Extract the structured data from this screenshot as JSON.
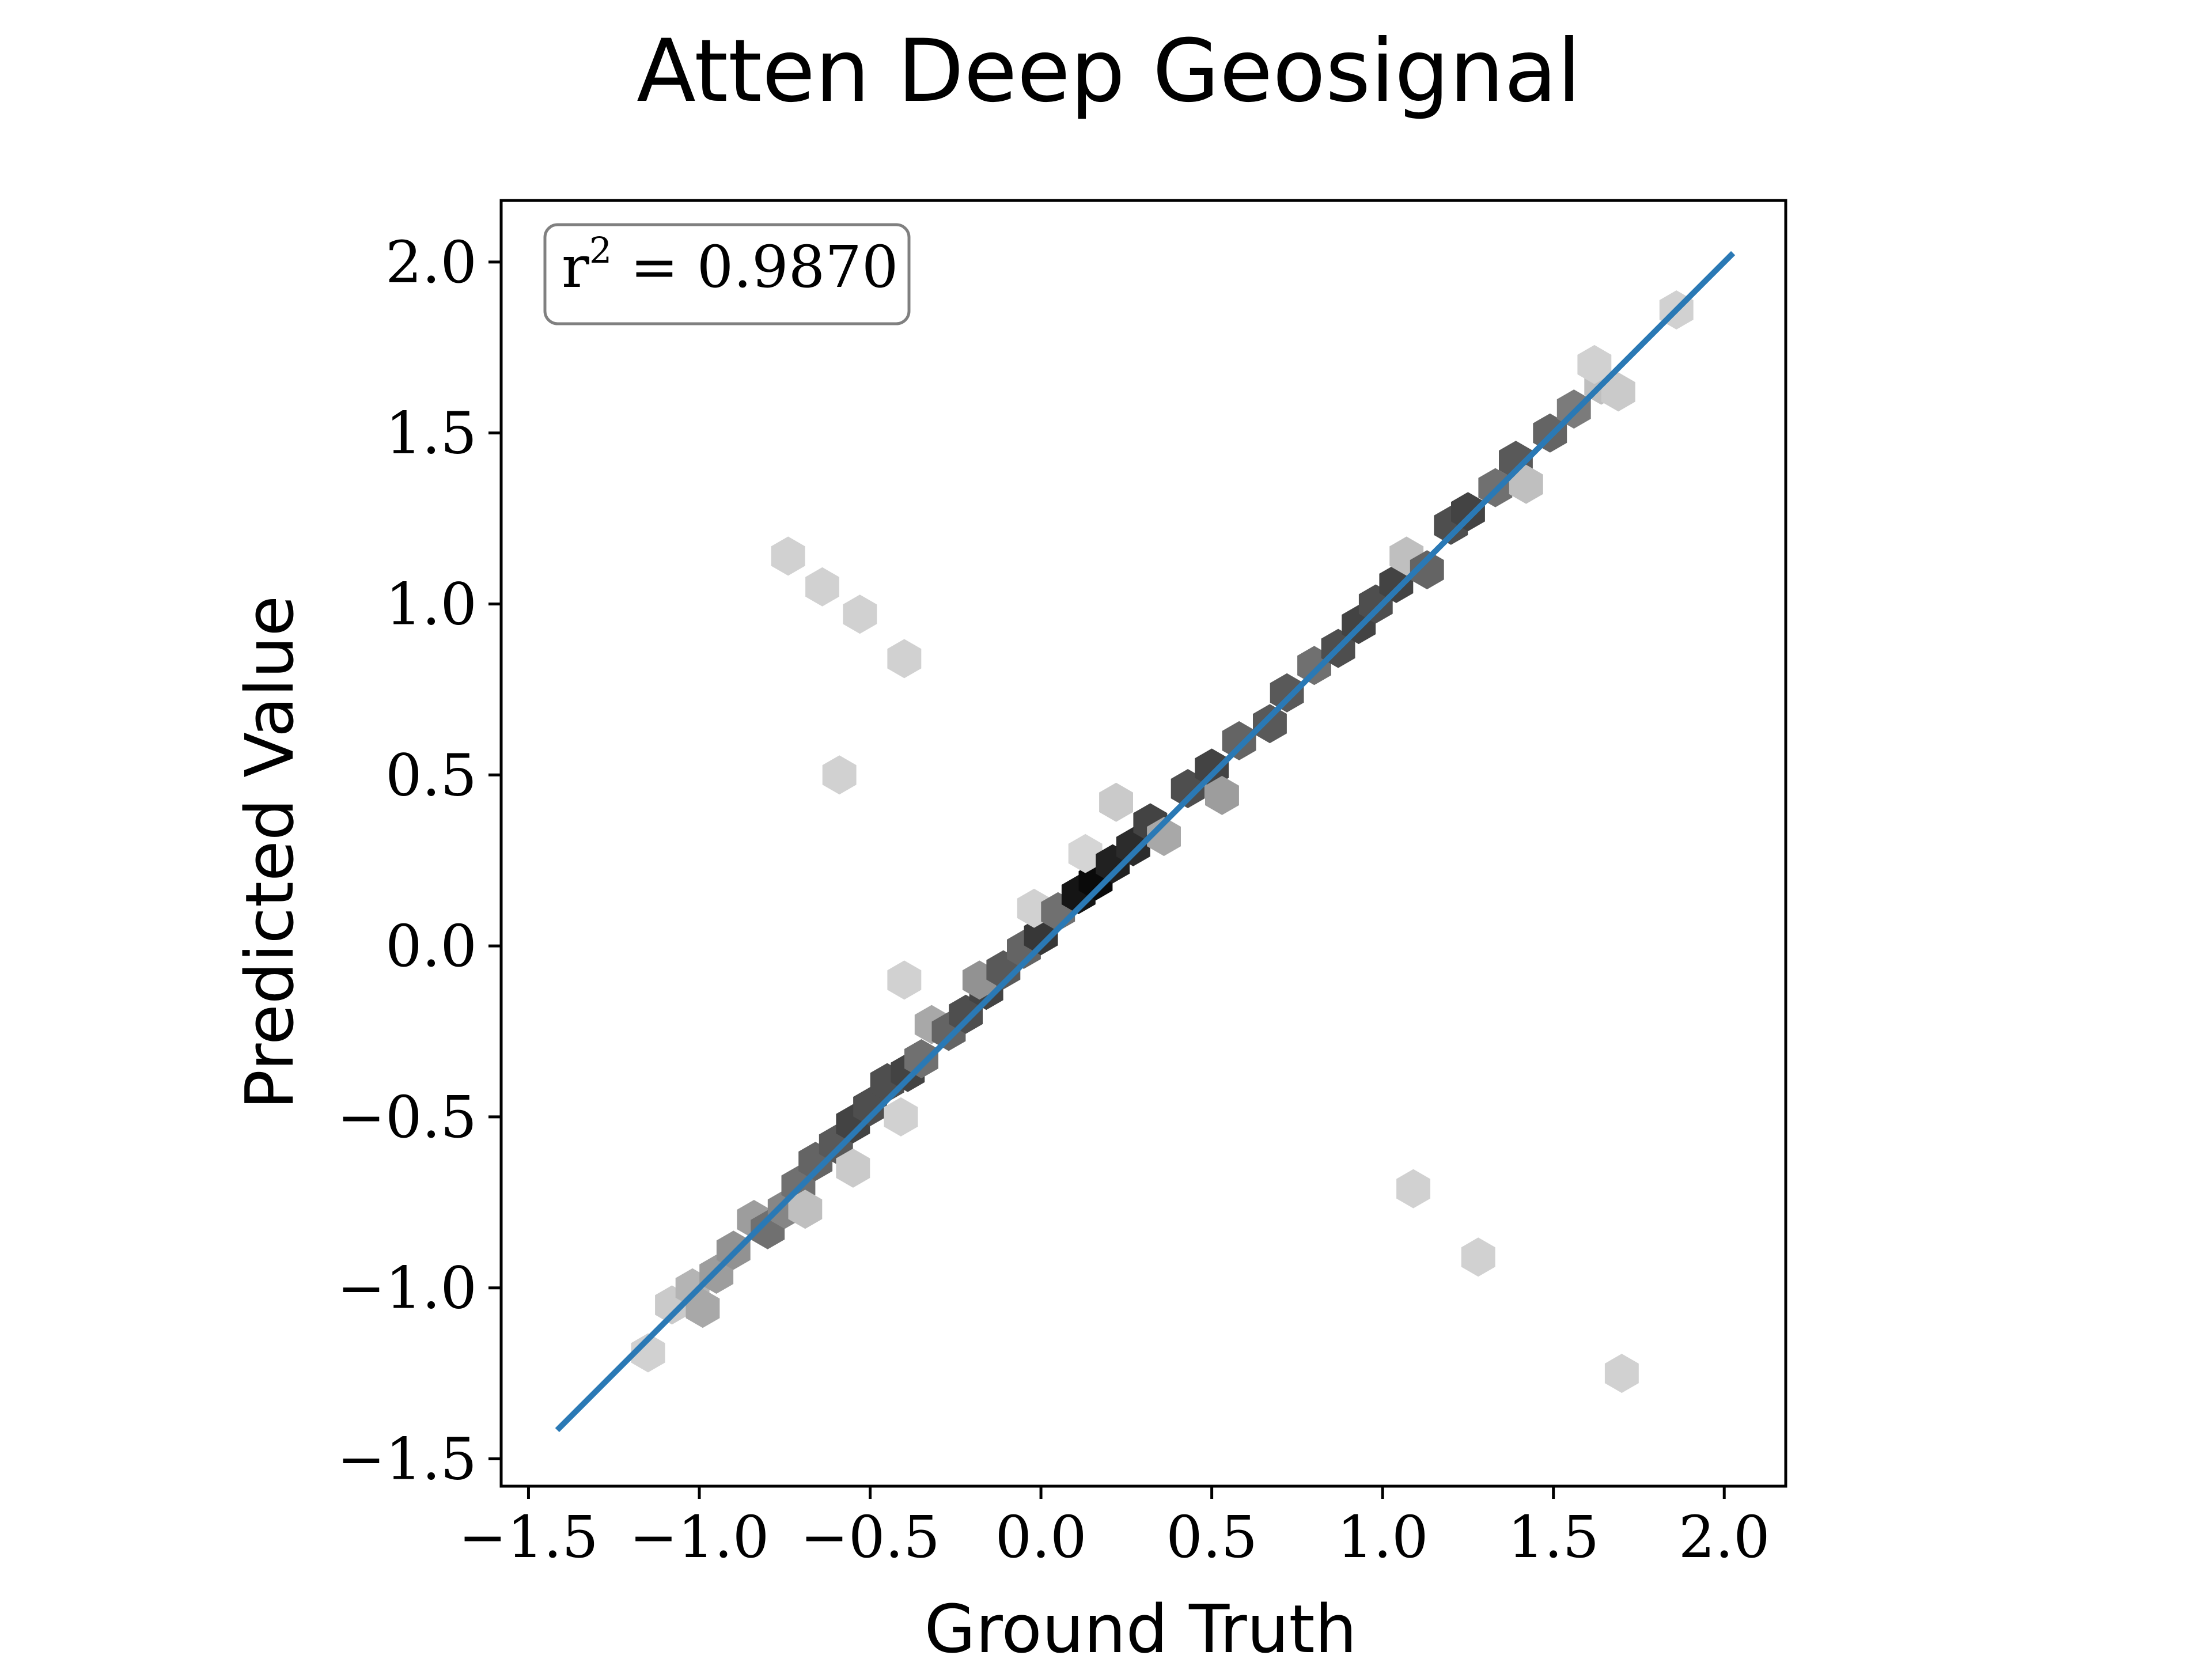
{
  "chart_data": {
    "type": "hexbin",
    "title": "Atten Deep Geosignal",
    "xlabel": "Ground Truth",
    "ylabel": "Predicted Value",
    "xlim": [
      -1.58,
      2.18
    ],
    "ylim": [
      -1.58,
      2.18
    ],
    "xticks": [
      -1.5,
      -1.0,
      -0.5,
      0.0,
      0.5,
      1.0,
      1.5,
      2.0
    ],
    "yticks": [
      -1.5,
      -1.0,
      -0.5,
      0.0,
      0.5,
      1.0,
      1.5,
      2.0
    ],
    "xtick_labels": [
      "−1.5",
      "−1.0",
      "−0.5",
      "0.0",
      "0.5",
      "1.0",
      "1.5",
      "2.0"
    ],
    "ytick_labels": [
      "−1.5",
      "−1.0",
      "−0.5",
      "0.0",
      "0.5",
      "1.0",
      "1.5",
      "2.0"
    ],
    "annotation": {
      "label": "r",
      "superscript": "2",
      "rest": " = 0.9870"
    },
    "grid": false,
    "colormap": "greys",
    "fit_line": {
      "color": "#2a79b5",
      "x": [
        -1.41,
        2.02
      ],
      "y": [
        -1.41,
        2.02
      ]
    },
    "hexbins": [
      {
        "x": -1.15,
        "y": -1.19,
        "density": 0.12
      },
      {
        "x": -1.08,
        "y": -1.05,
        "density": 0.15
      },
      {
        "x": -1.02,
        "y": -1.0,
        "density": 0.25
      },
      {
        "x": -0.99,
        "y": -1.06,
        "density": 0.3
      },
      {
        "x": -0.95,
        "y": -0.96,
        "density": 0.35
      },
      {
        "x": -0.9,
        "y": -0.89,
        "density": 0.4
      },
      {
        "x": -0.84,
        "y": -0.8,
        "density": 0.35
      },
      {
        "x": -0.8,
        "y": -0.83,
        "density": 0.55
      },
      {
        "x": -0.75,
        "y": -0.77,
        "density": 0.45
      },
      {
        "x": -0.71,
        "y": -0.7,
        "density": 0.55
      },
      {
        "x": -0.69,
        "y": -0.77,
        "density": 0.2
      },
      {
        "x": -0.66,
        "y": -0.63,
        "density": 0.6
      },
      {
        "x": -0.6,
        "y": -0.58,
        "density": 0.65
      },
      {
        "x": -0.55,
        "y": -0.52,
        "density": 0.75
      },
      {
        "x": -0.5,
        "y": -0.47,
        "density": 0.7
      },
      {
        "x": -0.55,
        "y": -0.65,
        "density": 0.15
      },
      {
        "x": -0.45,
        "y": -0.4,
        "density": 0.7
      },
      {
        "x": -0.39,
        "y": -0.37,
        "density": 0.75
      },
      {
        "x": -0.41,
        "y": -0.5,
        "density": 0.12
      },
      {
        "x": -0.35,
        "y": -0.33,
        "density": 0.55
      },
      {
        "x": -0.32,
        "y": -0.23,
        "density": 0.3
      },
      {
        "x": -0.27,
        "y": -0.25,
        "density": 0.6
      },
      {
        "x": -0.22,
        "y": -0.2,
        "density": 0.7
      },
      {
        "x": -0.16,
        "y": -0.13,
        "density": 0.75
      },
      {
        "x": -0.18,
        "y": -0.1,
        "density": 0.4
      },
      {
        "x": -0.11,
        "y": -0.07,
        "density": 0.65
      },
      {
        "x": -0.05,
        "y": -0.01,
        "density": 0.6
      },
      {
        "x": 0.0,
        "y": 0.03,
        "density": 0.8
      },
      {
        "x": -0.02,
        "y": 0.11,
        "density": 0.12
      },
      {
        "x": 0.05,
        "y": 0.1,
        "density": 0.55
      },
      {
        "x": 0.11,
        "y": 0.15,
        "density": 0.95
      },
      {
        "x": 0.16,
        "y": 0.19,
        "density": 1.0
      },
      {
        "x": 0.13,
        "y": 0.27,
        "density": 0.1
      },
      {
        "x": 0.21,
        "y": 0.24,
        "density": 0.9
      },
      {
        "x": 0.27,
        "y": 0.29,
        "density": 0.85
      },
      {
        "x": 0.22,
        "y": 0.42,
        "density": 0.15
      },
      {
        "x": 0.32,
        "y": 0.36,
        "density": 0.75
      },
      {
        "x": 0.36,
        "y": 0.32,
        "density": 0.3
      },
      {
        "x": 0.43,
        "y": 0.46,
        "density": 0.7
      },
      {
        "x": 0.5,
        "y": 0.52,
        "density": 0.75
      },
      {
        "x": 0.53,
        "y": 0.44,
        "density": 0.35
      },
      {
        "x": 0.58,
        "y": 0.6,
        "density": 0.6
      },
      {
        "x": 0.67,
        "y": 0.65,
        "density": 0.65
      },
      {
        "x": 0.72,
        "y": 0.74,
        "density": 0.65
      },
      {
        "x": 0.8,
        "y": 0.82,
        "density": 0.55
      },
      {
        "x": 0.87,
        "y": 0.87,
        "density": 0.7
      },
      {
        "x": 0.93,
        "y": 0.94,
        "density": 0.75
      },
      {
        "x": 0.98,
        "y": 1.0,
        "density": 0.7
      },
      {
        "x": 1.04,
        "y": 1.06,
        "density": 0.75
      },
      {
        "x": 1.07,
        "y": 1.14,
        "density": 0.2
      },
      {
        "x": 1.13,
        "y": 1.1,
        "density": 0.6
      },
      {
        "x": 1.2,
        "y": 1.23,
        "density": 0.7
      },
      {
        "x": 1.25,
        "y": 1.27,
        "density": 0.75
      },
      {
        "x": 1.33,
        "y": 1.34,
        "density": 0.55
      },
      {
        "x": 1.39,
        "y": 1.42,
        "density": 0.65
      },
      {
        "x": 1.42,
        "y": 1.35,
        "density": 0.2
      },
      {
        "x": 1.49,
        "y": 1.5,
        "density": 0.6
      },
      {
        "x": 1.56,
        "y": 1.57,
        "density": 0.5
      },
      {
        "x": 1.64,
        "y": 1.64,
        "density": 0.2
      },
      {
        "x": 1.62,
        "y": 1.7,
        "density": 0.12
      },
      {
        "x": 1.69,
        "y": 1.62,
        "density": 0.15
      },
      {
        "x": 1.86,
        "y": 1.86,
        "density": 0.12
      },
      {
        "x": -0.74,
        "y": 1.14,
        "density": 0.12
      },
      {
        "x": -0.64,
        "y": 1.05,
        "density": 0.12
      },
      {
        "x": -0.53,
        "y": 0.97,
        "density": 0.12
      },
      {
        "x": -0.4,
        "y": 0.84,
        "density": 0.12
      },
      {
        "x": -0.59,
        "y": 0.5,
        "density": 0.12
      },
      {
        "x": -0.4,
        "y": -0.1,
        "density": 0.12
      },
      {
        "x": 1.09,
        "y": -0.71,
        "density": 0.12
      },
      {
        "x": 1.28,
        "y": -0.91,
        "density": 0.12
      },
      {
        "x": 1.7,
        "y": -1.25,
        "density": 0.12
      }
    ]
  }
}
